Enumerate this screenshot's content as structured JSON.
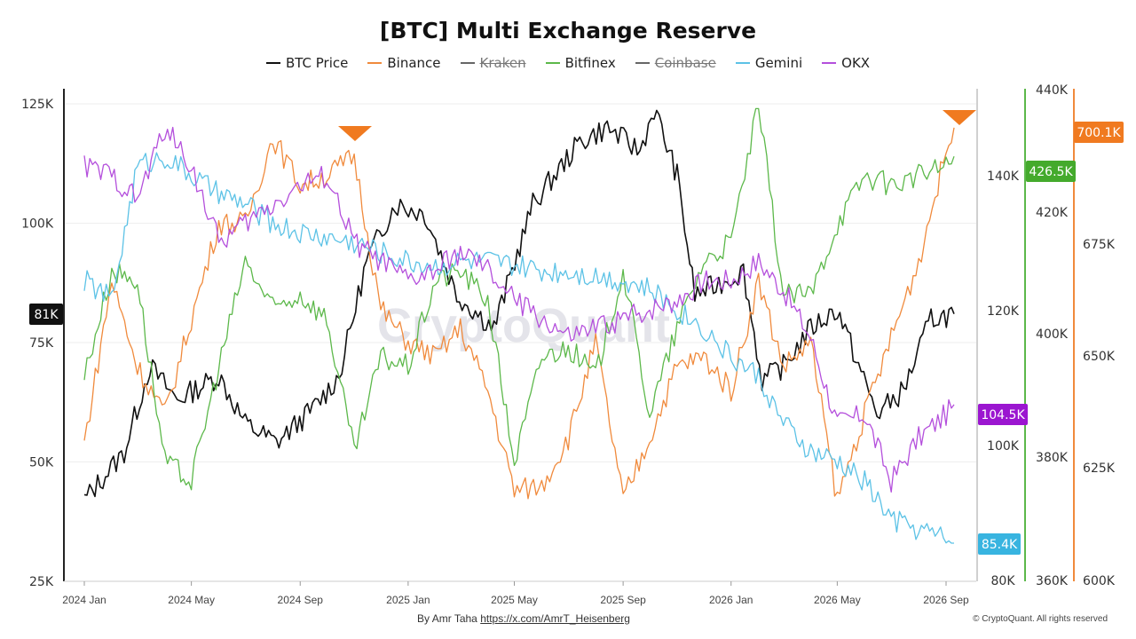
{
  "chart_data": {
    "type": "line",
    "title": "[BTC] Multi Exchange Reserve",
    "watermark": "CryptoQuant",
    "x_ticks": [
      "2024 Jan",
      "2024 May",
      "2024 Sep",
      "2025 Jan",
      "2025 May",
      "2025 Sep",
      "2026 Jan",
      "2026 May",
      "2026 Sep"
    ],
    "grid": true,
    "legend_placement": "top-center",
    "axes": {
      "left": {
        "range": [
          25000,
          125000
        ],
        "ticks": [
          "125K",
          "100K",
          "75K",
          "50K",
          "25K"
        ],
        "badge": "81K",
        "badge_color": "#111111"
      },
      "price": {
        "range": [
          80000,
          140000
        ],
        "ticks": [
          "140K",
          "120K",
          "100K",
          "80K"
        ],
        "badge": "104.5K",
        "badge_color": "#9b16d0"
      },
      "bitfinex": {
        "range": [
          360000,
          440000
        ],
        "ticks": [
          "440K",
          "420K",
          "400K",
          "380K",
          "360K"
        ],
        "badge": "426.5K",
        "badge_color": "#44aa2c"
      },
      "binance": {
        "range": [
          600000,
          700000
        ],
        "ticks": [
          "700.1K",
          "675K",
          "650K",
          "625K",
          "600K"
        ],
        "badge": "700.1K",
        "badge_color": "#f07a20"
      },
      "gemini_badge": {
        "badge": "85.4K",
        "badge_color": "#38b4e0"
      }
    },
    "series": [
      {
        "name": "BTC Price",
        "color": "#111111",
        "hidden": false,
        "axis": "left",
        "x": [
          "2024-01-01",
          "2024-02-15",
          "2024-03-15",
          "2024-04-15",
          "2024-06-01",
          "2024-07-01",
          "2024-08-05",
          "2024-09-15",
          "2024-10-15",
          "2024-11-15",
          "2024-12-17",
          "2025-01-20",
          "2025-02-25",
          "2025-04-08",
          "2025-05-22",
          "2025-07-14",
          "2025-08-14",
          "2025-09-20",
          "2025-10-06",
          "2025-11-01",
          "2025-11-21",
          "2025-12-15",
          "2026-01-15",
          "2026-02-05",
          "2026-03-01",
          "2026-04-01",
          "2026-05-01",
          "2026-06-15",
          "2026-07-15",
          "2026-08-15",
          "2026-09-10"
        ],
        "values": [
          42,
          52,
          70,
          63,
          68,
          58,
          54,
          61,
          68,
          92,
          104,
          102,
          85,
          78,
          104,
          117,
          120,
          115,
          124,
          110,
          85,
          87,
          90,
          67,
          70,
          78,
          82,
          60,
          65,
          80,
          81
        ]
      },
      {
        "name": "Binance",
        "color": "#f08a3c",
        "hidden": false,
        "axis": "left",
        "x": [
          "2024-01-01",
          "2024-02-01",
          "2024-03-01",
          "2024-04-01",
          "2024-05-01",
          "2024-06-01",
          "2024-07-01",
          "2024-08-01",
          "2024-09-01",
          "2024-10-01",
          "2024-11-01",
          "2024-12-01",
          "2025-01-01",
          "2025-02-01",
          "2025-03-01",
          "2025-04-01",
          "2025-05-01",
          "2025-06-01",
          "2025-07-01",
          "2025-08-01",
          "2025-09-01",
          "2025-10-01",
          "2025-11-01",
          "2025-12-01",
          "2026-01-01",
          "2026-02-01",
          "2026-03-01",
          "2026-04-01",
          "2026-05-01",
          "2026-06-01",
          "2026-07-01",
          "2026-08-01",
          "2026-09-01",
          "2026-09-10"
        ],
        "values": [
          54,
          88,
          70,
          60,
          80,
          100,
          100,
          118,
          108,
          110,
          114,
          82,
          75,
          72,
          78,
          65,
          44,
          45,
          55,
          75,
          42,
          55,
          70,
          72,
          65,
          88,
          70,
          75,
          42,
          60,
          76,
          92,
          115,
          120
        ]
      },
      {
        "name": "Kraken",
        "color": "#666666",
        "hidden": true,
        "axis": "left",
        "x": [],
        "values": []
      },
      {
        "name": "Bitfinex",
        "color": "#5cb84a",
        "hidden": false,
        "axis": "left",
        "x": [
          "2024-01-01",
          "2024-02-01",
          "2024-03-01",
          "2024-04-01",
          "2024-05-01",
          "2024-06-01",
          "2024-07-01",
          "2024-08-01",
          "2024-09-01",
          "2024-10-01",
          "2024-11-01",
          "2024-12-01",
          "2025-01-01",
          "2025-02-01",
          "2025-03-01",
          "2025-04-01",
          "2025-05-01",
          "2025-06-01",
          "2025-07-01",
          "2025-08-01",
          "2025-09-01",
          "2025-10-01",
          "2025-11-01",
          "2025-12-01",
          "2026-01-01",
          "2026-02-01",
          "2026-03-01",
          "2026-04-01",
          "2026-05-01",
          "2026-06-01",
          "2026-07-01",
          "2026-08-01",
          "2026-09-01",
          "2026-09-10"
        ],
        "values": [
          68,
          90,
          88,
          50,
          46,
          70,
          92,
          82,
          85,
          80,
          52,
          72,
          70,
          88,
          90,
          84,
          50,
          72,
          74,
          68,
          90,
          60,
          78,
          92,
          96,
          125,
          85,
          85,
          100,
          110,
          108,
          110,
          112,
          114
        ]
      },
      {
        "name": "Coinbase",
        "color": "#666666",
        "hidden": true,
        "axis": "left",
        "x": [],
        "values": []
      },
      {
        "name": "Gemini",
        "color": "#5cc2e6",
        "hidden": false,
        "axis": "left",
        "x": [
          "2024-01-01",
          "2024-02-01",
          "2024-03-01",
          "2024-04-01",
          "2024-05-01",
          "2024-06-01",
          "2024-07-01",
          "2024-08-01",
          "2024-09-01",
          "2024-10-01",
          "2024-11-01",
          "2024-12-01",
          "2025-01-01",
          "2025-02-01",
          "2025-03-01",
          "2025-04-01",
          "2025-05-01",
          "2025-06-01",
          "2025-07-01",
          "2025-08-01",
          "2025-09-01",
          "2025-10-01",
          "2025-11-01",
          "2025-12-01",
          "2026-01-01",
          "2026-02-01",
          "2026-03-01",
          "2026-04-01",
          "2026-05-01",
          "2026-06-01",
          "2026-07-01",
          "2026-08-01",
          "2026-09-01",
          "2026-09-10"
        ],
        "values": [
          88,
          84,
          112,
          114,
          110,
          106,
          104,
          100,
          98,
          97,
          96,
          94,
          92,
          91,
          92,
          92,
          91,
          90,
          90,
          89,
          88,
          86,
          82,
          78,
          72,
          68,
          58,
          52,
          50,
          46,
          38,
          36,
          34,
          33
        ]
      },
      {
        "name": "OKX",
        "color": "#b44fdc",
        "hidden": false,
        "axis": "left",
        "x": [
          "2024-01-01",
          "2024-02-01",
          "2024-03-01",
          "2024-04-01",
          "2024-05-01",
          "2024-06-01",
          "2024-07-01",
          "2024-08-01",
          "2024-09-01",
          "2024-10-01",
          "2024-11-01",
          "2024-12-01",
          "2025-01-01",
          "2025-02-01",
          "2025-03-01",
          "2025-04-01",
          "2025-05-01",
          "2025-06-01",
          "2025-07-01",
          "2025-08-01",
          "2025-09-01",
          "2025-10-01",
          "2025-11-01",
          "2025-12-01",
          "2026-01-01",
          "2026-02-01",
          "2026-03-01",
          "2026-04-01",
          "2026-05-01",
          "2026-06-01",
          "2026-07-01",
          "2026-08-01",
          "2026-09-01",
          "2026-09-10"
        ],
        "values": [
          112,
          110,
          105,
          120,
          112,
          96,
          100,
          104,
          108,
          110,
          96,
          92,
          88,
          90,
          94,
          90,
          84,
          80,
          76,
          78,
          80,
          82,
          84,
          88,
          88,
          92,
          86,
          76,
          58,
          60,
          46,
          55,
          60,
          62
        ]
      }
    ]
  },
  "footer": {
    "credit_prefix": "By Amr Taha",
    "link": "https://x.com/AmrT_Heisenberg",
    "copyright": "© CryptoQuant. All rights reserved"
  }
}
